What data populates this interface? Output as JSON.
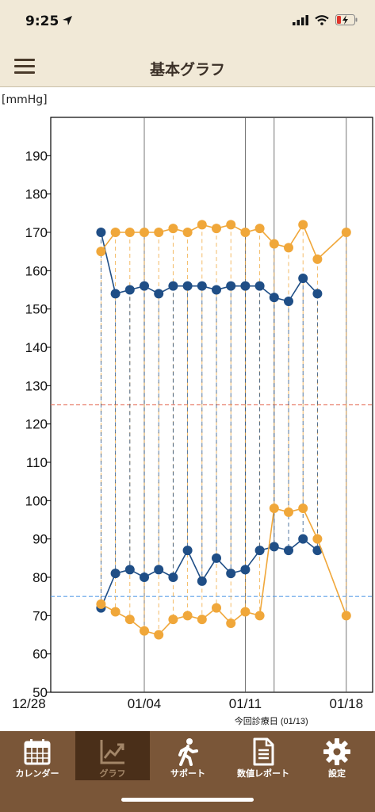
{
  "status": {
    "time": "9:25"
  },
  "header": {
    "title": "基本グラフ"
  },
  "chart_unit": "[mmHg]",
  "chart_data": {
    "type": "line",
    "ylim": [
      50,
      200
    ],
    "yticks": [
      50,
      60,
      70,
      80,
      90,
      100,
      110,
      120,
      130,
      140,
      150,
      160,
      170,
      180,
      190
    ],
    "xlim": [
      28,
      19.5
    ],
    "xticks": [
      {
        "day": 28,
        "label": "12/28"
      },
      {
        "day": 4,
        "label": "01/04"
      },
      {
        "day": 11,
        "label": "01/11"
      },
      {
        "day": 18,
        "label": "01/18"
      }
    ],
    "visit_day": 13,
    "visit_label": "今回診療日 (01/13)",
    "reference_lines": [
      {
        "value": 125,
        "color": "#e8806e"
      },
      {
        "value": 75,
        "color": "#5fa0e8"
      }
    ],
    "x": [
      1,
      2,
      3,
      4,
      5,
      6,
      7,
      8,
      9,
      10,
      11,
      12,
      13,
      14,
      15,
      16,
      18
    ],
    "series": [
      {
        "color": "#1f4e86",
        "values": [
          170,
          154,
          155,
          156,
          154,
          156,
          156,
          156,
          155,
          156,
          156,
          156,
          153,
          152,
          158,
          154,
          null
        ]
      },
      {
        "color": "#f0a73a",
        "values": [
          165,
          170,
          170,
          170,
          170,
          171,
          170,
          172,
          171,
          172,
          170,
          171,
          167,
          166,
          172,
          163,
          170
        ]
      },
      {
        "color": "#1f4e86",
        "values": [
          72,
          81,
          82,
          80,
          82,
          80,
          87,
          79,
          85,
          81,
          82,
          87,
          88,
          87,
          90,
          87,
          null
        ]
      },
      {
        "color": "#f0a73a",
        "values": [
          73,
          71,
          69,
          66,
          65,
          69,
          70,
          69,
          72,
          68,
          71,
          70,
          98,
          97,
          98,
          90,
          70
        ]
      }
    ]
  },
  "tabs": [
    {
      "label": "カレンダー",
      "icon": "calendar-icon"
    },
    {
      "label": "グラフ",
      "icon": "graph-icon"
    },
    {
      "label": "サポート",
      "icon": "walking-person-icon"
    },
    {
      "label": "数値レポート",
      "icon": "document-icon"
    },
    {
      "label": "設定",
      "icon": "gear-icon"
    }
  ]
}
